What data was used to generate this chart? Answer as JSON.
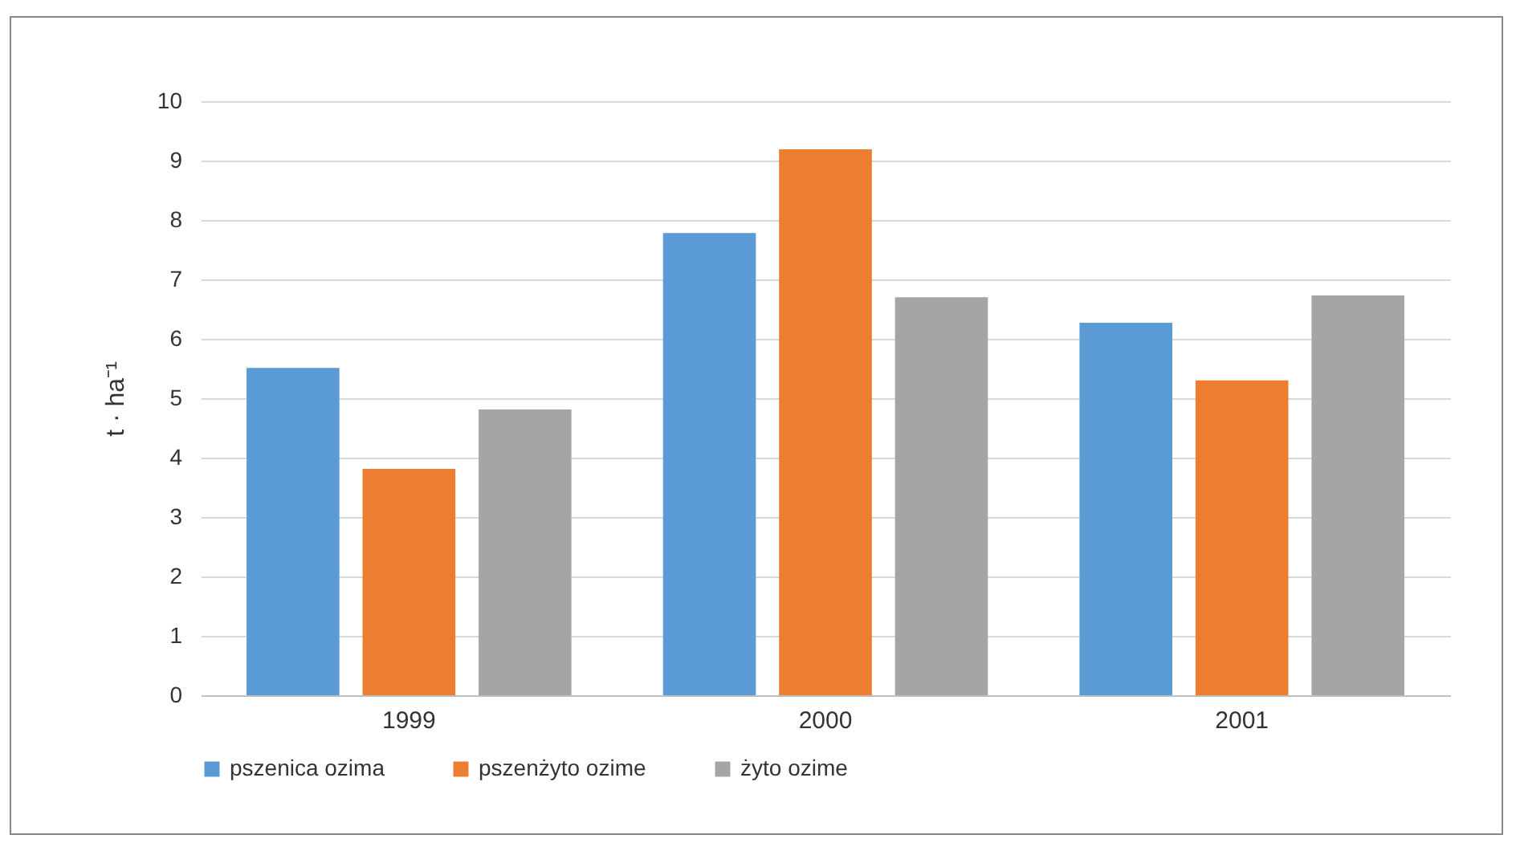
{
  "chart_data": {
    "type": "bar",
    "ylabel": "t · ha⁻¹",
    "categories": [
      "1999",
      "2000",
      "2001"
    ],
    "series": [
      {
        "name": "pszenica ozima",
        "color": "#5b9bd5",
        "values": [
          5.51,
          7.78,
          6.27
        ]
      },
      {
        "name": "pszenżyto ozime",
        "color": "#ed7d31",
        "values": [
          3.81,
          9.19,
          5.3
        ]
      },
      {
        "name": "żyto ozime",
        "color": "#a5a5a5",
        "values": [
          4.81,
          6.7,
          6.73
        ]
      }
    ],
    "ylim": [
      0,
      10
    ],
    "yticks": [
      0,
      1,
      2,
      3,
      4,
      5,
      6,
      7,
      8,
      9,
      10
    ],
    "grid": "y",
    "legend": "bottom"
  }
}
